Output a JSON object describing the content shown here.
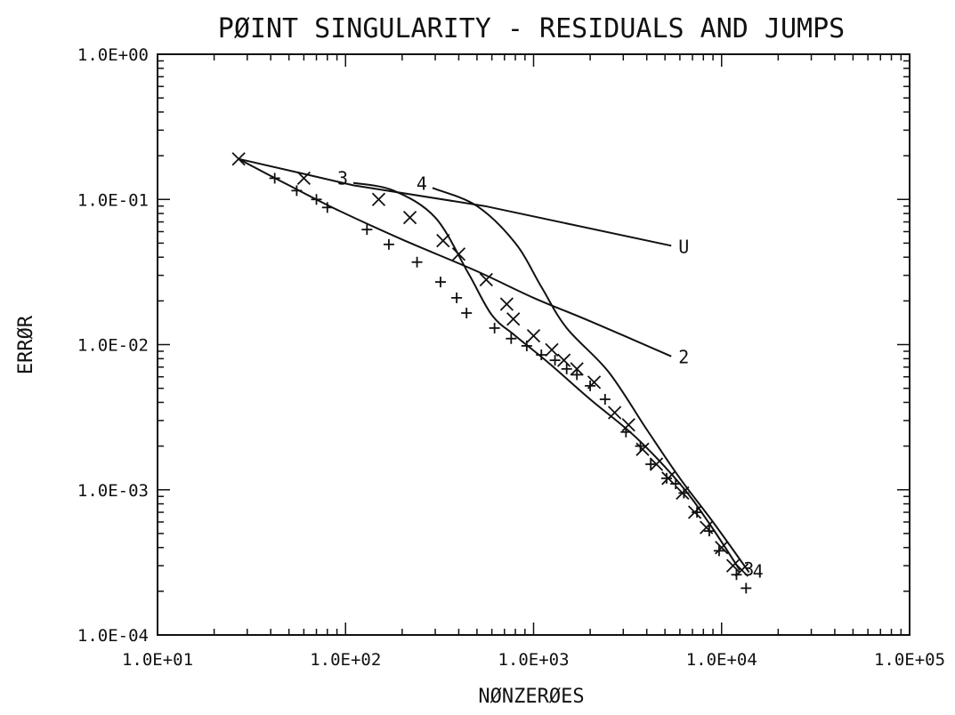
{
  "chart_data": {
    "type": "line",
    "title": "PØINT SINGULARITY - RESIDUALS AND JUMPS",
    "xlabel": "NØNZERØES",
    "ylabel": "ERRØR",
    "xscale": "log",
    "yscale": "log",
    "xlim": [
      10,
      100000
    ],
    "ylim": [
      0.0001,
      1.0
    ],
    "x_tick_labels": [
      "1.0E+01",
      "1.0E+02",
      "1.0E+03",
      "1.0E+04",
      "1.0E+05"
    ],
    "y_tick_labels": [
      "1.0E+00",
      "1.0E-01",
      "1.0E-02",
      "1.0E-03",
      "1.0E-04"
    ],
    "grid": false,
    "series": [
      {
        "name": "U",
        "marker": "line",
        "x": [
          27,
          60,
          110,
          550,
          5400
        ],
        "y": [
          0.19,
          0.15,
          0.125,
          0.09,
          0.048
        ]
      },
      {
        "name": "2",
        "marker": "line",
        "x": [
          27,
          50,
          90,
          200,
          500,
          1000,
          2000,
          5400
        ],
        "y": [
          0.19,
          0.125,
          0.085,
          0.053,
          0.032,
          0.021,
          0.0145,
          0.0083
        ]
      },
      {
        "name": "3",
        "marker": "line",
        "x": [
          110,
          180,
          300,
          450,
          600,
          800,
          1200,
          2000,
          3500,
          6000,
          8500,
          12500
        ],
        "y": [
          0.13,
          0.115,
          0.075,
          0.031,
          0.016,
          0.0115,
          0.0075,
          0.0042,
          0.0023,
          0.0011,
          0.0006,
          0.00028
        ]
      },
      {
        "name": "4",
        "marker": "line",
        "x": [
          290,
          500,
          800,
          1100,
          1500,
          2500,
          4000,
          6000,
          9000,
          14000
        ],
        "y": [
          0.12,
          0.09,
          0.05,
          0.025,
          0.013,
          0.0065,
          0.0026,
          0.0012,
          0.0006,
          0.00027
        ]
      },
      {
        "name": "",
        "marker": "x",
        "x": [
          27,
          60,
          150,
          220,
          330,
          400,
          560,
          720,
          780,
          1000,
          1250,
          1450,
          1700,
          2100,
          2700,
          3200,
          3800,
          4500,
          5200,
          6200,
          7200,
          8300,
          10000,
          11500,
          12800
        ],
        "y": [
          0.19,
          0.14,
          0.1,
          0.075,
          0.052,
          0.042,
          0.028,
          0.019,
          0.015,
          0.0115,
          0.0092,
          0.0078,
          0.0068,
          0.0055,
          0.0034,
          0.0028,
          0.0019,
          0.0015,
          0.0012,
          0.00095,
          0.0007,
          0.00055,
          0.0004,
          0.0003,
          0.00028
        ]
      },
      {
        "name": "",
        "marker": "+",
        "x": [
          42,
          55,
          70,
          80,
          130,
          170,
          240,
          320,
          390,
          440,
          620,
          760,
          920,
          1100,
          1300,
          1500,
          1700,
          2000,
          2400,
          3100,
          3700,
          4200,
          5100,
          5700,
          6300,
          7400,
          8600,
          9700,
          12000,
          13500
        ],
        "y": [
          0.14,
          0.115,
          0.1,
          0.088,
          0.062,
          0.049,
          0.037,
          0.027,
          0.021,
          0.0165,
          0.013,
          0.011,
          0.0098,
          0.0085,
          0.0078,
          0.0068,
          0.0062,
          0.0052,
          0.0042,
          0.0025,
          0.002,
          0.0015,
          0.0012,
          0.0011,
          0.00095,
          0.0007,
          0.00052,
          0.00038,
          0.00026,
          0.00021
        ]
      }
    ]
  }
}
